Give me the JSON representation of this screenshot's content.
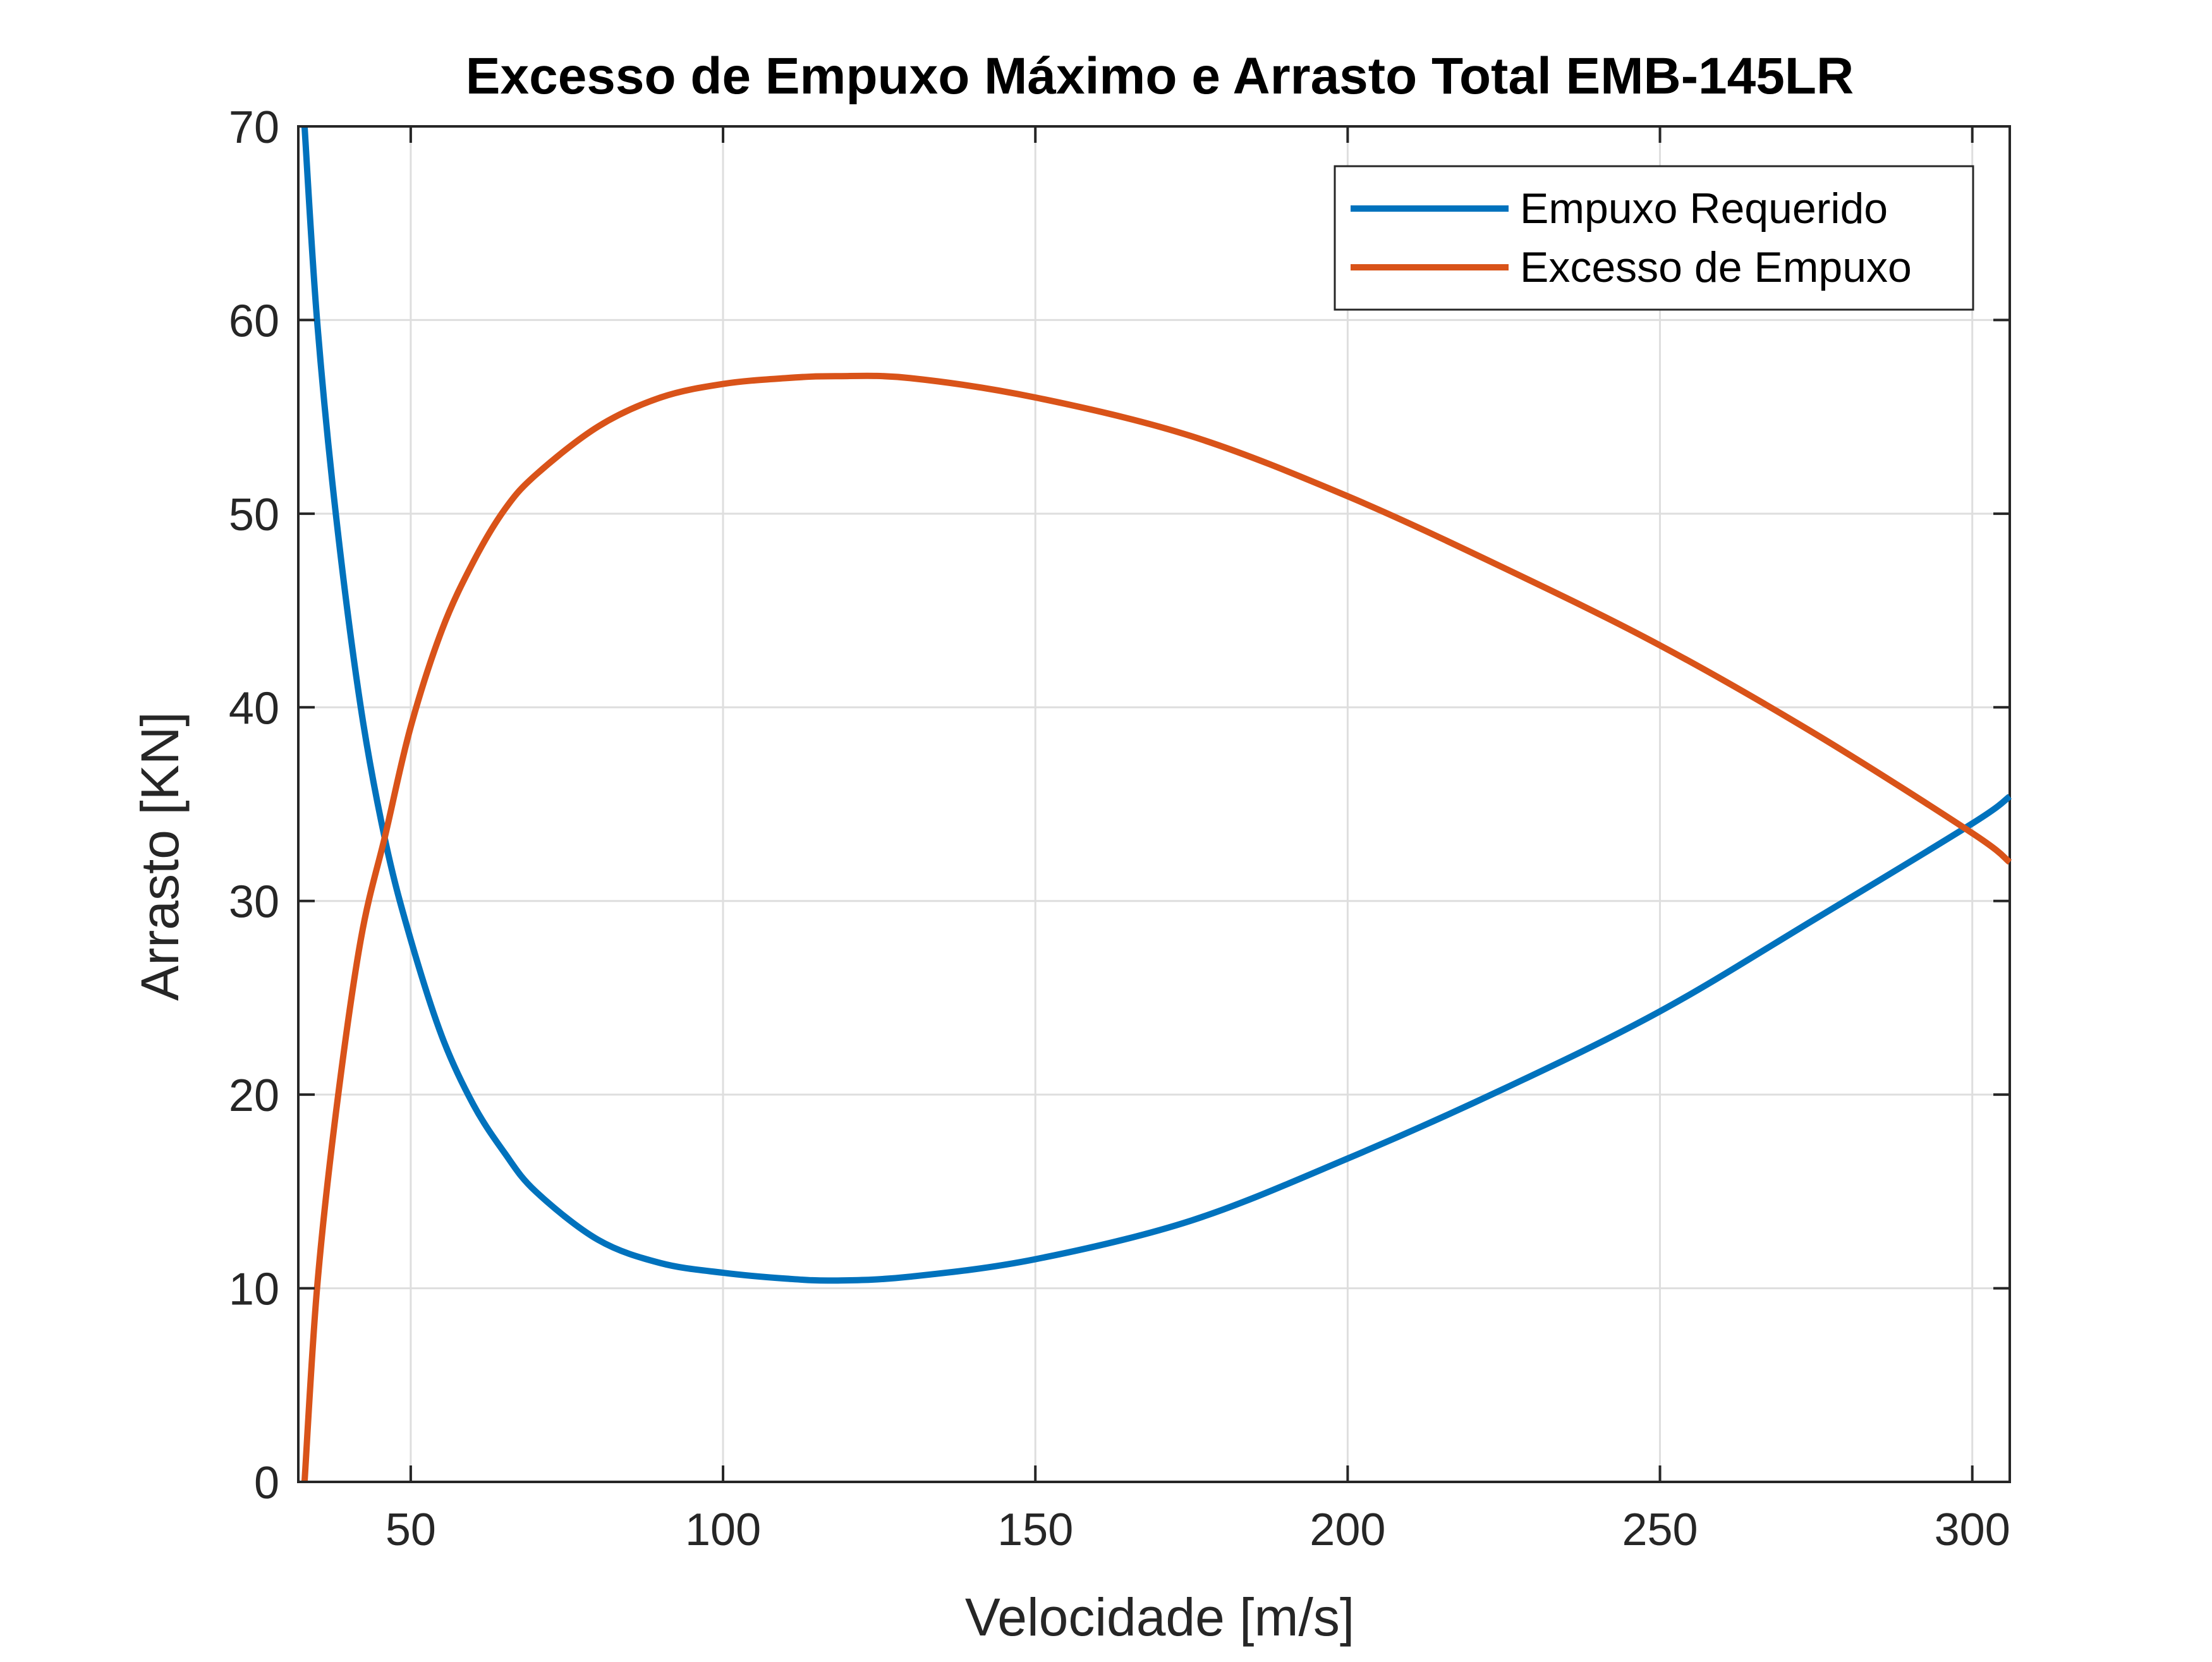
{
  "chart_data": {
    "type": "line",
    "title": "Excesso de Empuxo Máximo e Arrasto Total EMB-145LR",
    "xlabel": "Velocidade [m/s]",
    "ylabel": "Arrasto  [KN]",
    "xlim": [
      32,
      306
    ],
    "ylim": [
      0,
      70
    ],
    "xticks": [
      50,
      100,
      150,
      200,
      250,
      300
    ],
    "yticks": [
      0,
      10,
      20,
      30,
      40,
      50,
      60,
      70
    ],
    "grid": true,
    "legend_position": "top-right",
    "series": [
      {
        "name": "Empuxo Requerido",
        "color": "#0072BD",
        "x": [
          33,
          35,
          38,
          42,
          46,
          50,
          55,
          60,
          65,
          70,
          80,
          90,
          100,
          110,
          118,
          130,
          150,
          175,
          200,
          225,
          250,
          275,
          300,
          306
        ],
        "y": [
          70,
          60,
          50,
          40,
          33,
          28,
          23,
          19.5,
          17,
          15,
          12.5,
          11.3,
          10.8,
          10.5,
          10.4,
          10.6,
          11.5,
          13.5,
          16.7,
          20.3,
          24.3,
          29.1,
          34.0,
          35.4
        ]
      },
      {
        "name": "Excesso de Empuxo",
        "color": "#D95319",
        "x": [
          33,
          35,
          38,
          42,
          46,
          50,
          55,
          60,
          65,
          70,
          80,
          90,
          100,
          110,
          118,
          130,
          150,
          175,
          200,
          225,
          250,
          275,
          300,
          306
        ],
        "y": [
          0,
          10,
          19,
          28,
          33.5,
          39,
          44,
          47.5,
          50.2,
          52,
          54.5,
          56,
          56.7,
          57,
          57.1,
          57,
          56,
          54,
          50.9,
          47.2,
          43.2,
          38.6,
          33.5,
          32
        ]
      }
    ]
  }
}
